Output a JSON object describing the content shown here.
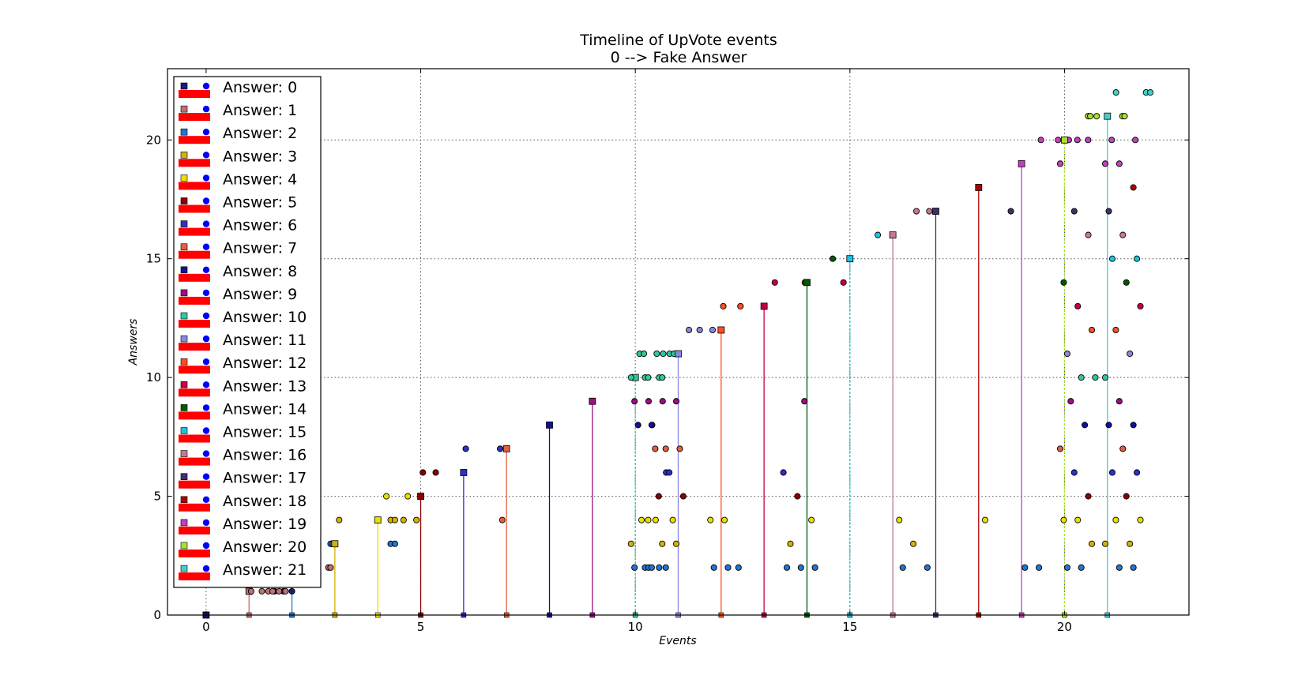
{
  "chart_data": {
    "type": "scatter",
    "title": "Timeline of UpVote events",
    "subtitle": "0 --> Fake Answer",
    "xlabel": "Events",
    "ylabel": "Answers",
    "xlim": [
      -0.9,
      22.9
    ],
    "ylim": [
      0,
      23
    ],
    "xticks": [
      "0",
      "5",
      "10",
      "15",
      "20"
    ],
    "yticks": [
      "0",
      "5",
      "10",
      "15",
      "20"
    ],
    "grid": true,
    "legend_position": "upper-left",
    "legend": [
      "Answer: 0",
      "Answer: 1",
      "Answer: 2",
      "Answer: 3",
      "Answer: 4",
      "Answer: 5",
      "Answer: 6",
      "Answer: 7",
      "Answer: 8",
      "Answer: 9",
      "Answer: 10",
      "Answer: 11",
      "Answer: 12",
      "Answer: 13",
      "Answer: 14",
      "Answer: 15",
      "Answer: 16",
      "Answer: 17",
      "Answer: 18",
      "Answer: 19",
      "Answer: 20",
      "Answer: 21"
    ],
    "legend_swatch_colors": {
      "line": "#ff0000",
      "dot": "#0000ff"
    },
    "series_colors": [
      "#1a1a80",
      "#c07070",
      "#1f77d4",
      "#d4b200",
      "#e8e000",
      "#8b0000",
      "#3030c8",
      "#e06040",
      "#1010a0",
      "#9a1080",
      "#30c8a0",
      "#8888e0",
      "#ff5020",
      "#c80040",
      "#005a00",
      "#20c0e0",
      "#c87890",
      "#40306a",
      "#b00000",
      "#c040c0",
      "#a8e030",
      "#40d0c8"
    ],
    "answers": [
      {
        "answer": 0,
        "event": 0,
        "upvotes": [
          [
            1.6,
            1
          ],
          [
            1.8,
            1
          ],
          [
            2.0,
            1
          ]
        ]
      },
      {
        "answer": 1,
        "event": 1,
        "upvotes": [
          [
            1.05,
            1
          ],
          [
            1.3,
            1
          ],
          [
            1.45,
            1
          ],
          [
            1.55,
            1
          ],
          [
            1.7,
            1
          ],
          [
            1.85,
            1
          ],
          [
            2.85,
            2
          ],
          [
            2.9,
            2
          ]
        ]
      },
      {
        "answer": 2,
        "event": 2,
        "upvotes": [
          [
            2.9,
            3
          ],
          [
            2.95,
            3
          ],
          [
            4.3,
            3
          ],
          [
            4.4,
            3
          ]
        ]
      },
      {
        "answer": 3,
        "event": 3,
        "upvotes": [
          [
            3.1,
            4
          ],
          [
            4.3,
            4
          ],
          [
            4.4,
            4
          ],
          [
            4.6,
            4
          ],
          [
            4.9,
            4
          ]
        ]
      },
      {
        "answer": 4,
        "event": 4,
        "upvotes": [
          [
            4.2,
            5
          ],
          [
            4.7,
            5
          ]
        ]
      },
      {
        "answer": 5,
        "event": 5,
        "upvotes": [
          [
            5.05,
            6
          ],
          [
            5.35,
            6
          ]
        ]
      },
      {
        "answer": 6,
        "event": 6,
        "upvotes": [
          [
            6.05,
            7
          ],
          [
            6.85,
            7
          ]
        ]
      },
      {
        "answer": 7,
        "event": 7,
        "upvotes": [
          [
            6.9,
            4
          ]
        ]
      },
      {
        "answer": 8,
        "event": 8,
        "upvotes": []
      },
      {
        "answer": 9,
        "event": 9,
        "upvotes": []
      },
      {
        "answer": 10,
        "event": 10,
        "upvotes": [
          [
            10.1,
            11
          ],
          [
            10.2,
            11
          ],
          [
            10.5,
            11
          ],
          [
            10.65,
            11
          ],
          [
            10.8,
            11
          ],
          [
            10.9,
            11
          ]
        ]
      },
      {
        "answer": 11,
        "event": 11,
        "upvotes": [
          [
            11.25,
            12
          ],
          [
            11.5,
            12
          ],
          [
            11.8,
            12
          ]
        ]
      },
      {
        "answer": 12,
        "event": 12,
        "upvotes": [
          [
            12.05,
            13
          ],
          [
            12.45,
            13
          ]
        ]
      },
      {
        "answer": 13,
        "event": 13,
        "upvotes": [
          [
            13.25,
            14
          ],
          [
            13.95,
            14
          ],
          [
            14.85,
            14
          ]
        ]
      },
      {
        "answer": 14,
        "event": 14,
        "upvotes": [
          [
            14.6,
            15
          ]
        ]
      },
      {
        "answer": 15,
        "event": 15,
        "upvotes": [
          [
            15.65,
            16
          ]
        ]
      },
      {
        "answer": 16,
        "event": 16,
        "upvotes": [
          [
            16.55,
            17
          ],
          [
            16.85,
            17
          ]
        ]
      },
      {
        "answer": 17,
        "event": 17,
        "upvotes": []
      },
      {
        "answer": 18,
        "event": 18,
        "upvotes": []
      },
      {
        "answer": 19,
        "event": 19,
        "upvotes": [
          [
            19.45,
            20
          ],
          [
            19.85,
            20
          ],
          [
            20.1,
            20
          ],
          [
            20.3,
            20
          ],
          [
            20.55,
            20
          ],
          [
            21.1,
            20
          ],
          [
            21.65,
            20
          ]
        ]
      },
      {
        "answer": 20,
        "event": 20,
        "upvotes": [
          [
            20.55,
            21
          ],
          [
            20.6,
            21
          ],
          [
            20.75,
            21
          ],
          [
            21.35,
            21
          ],
          [
            21.4,
            21
          ]
        ]
      },
      {
        "answer": 21,
        "event": 21,
        "upvotes": [
          [
            21.2,
            22
          ],
          [
            21.9,
            22
          ],
          [
            22.0,
            22
          ]
        ]
      }
    ],
    "late_upvotes": [
      {
        "x": 10.35,
        "ys": [
          10,
          10,
          10,
          9,
          9,
          9,
          8,
          8,
          6,
          4,
          4,
          3,
          2,
          2,
          2,
          2
        ]
      },
      {
        "x": 10.75,
        "ys": [
          10,
          10,
          9,
          8,
          7,
          7,
          7,
          6,
          5,
          5,
          4,
          4,
          3,
          3,
          2,
          2
        ]
      },
      {
        "x": 12.2,
        "ys": [
          4,
          4,
          2,
          2,
          2
        ]
      },
      {
        "x": 13.9,
        "ys": [
          6,
          5,
          4,
          2,
          2,
          2,
          3,
          9
        ]
      },
      {
        "x": 16.6,
        "ys": [
          4,
          3,
          2,
          2
        ]
      },
      {
        "x": 18.6,
        "ys": [
          4
        ]
      },
      {
        "x": 19.2,
        "ys": [
          17,
          2,
          2
        ]
      },
      {
        "x": 20.35,
        "ys": [
          19,
          17,
          16,
          14,
          13,
          12,
          11,
          10,
          10,
          9,
          8,
          7,
          6,
          5,
          4,
          4,
          3,
          2,
          2
        ]
      },
      {
        "x": 21.4,
        "ys": [
          19,
          19,
          18,
          17,
          16,
          15,
          15,
          14,
          13,
          12,
          11,
          10,
          9,
          8,
          8,
          7,
          6,
          6,
          5,
          4,
          4,
          3,
          3,
          2,
          2
        ]
      }
    ]
  }
}
